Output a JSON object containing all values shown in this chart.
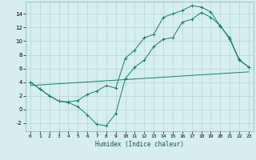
{
  "xlabel": "Humidex (Indice chaleur)",
  "bg_color": "#d6eef0",
  "grid_color": "#b8d8dc",
  "line_color": "#1a7a6e",
  "xlim": [
    -0.5,
    23.5
  ],
  "ylim": [
    -3.2,
    15.8
  ],
  "xticks": [
    0,
    1,
    2,
    3,
    4,
    5,
    6,
    7,
    8,
    9,
    10,
    11,
    12,
    13,
    14,
    15,
    16,
    17,
    18,
    19,
    20,
    21,
    22,
    23
  ],
  "yticks": [
    -2,
    0,
    2,
    4,
    6,
    8,
    10,
    12,
    14
  ],
  "line1_x": [
    0,
    1,
    2,
    3,
    4,
    5,
    6,
    7,
    8,
    9,
    10,
    11,
    12,
    13,
    14,
    15,
    16,
    17,
    18,
    19,
    20,
    21,
    22,
    23
  ],
  "line1_y": [
    4.0,
    3.0,
    2.0,
    1.2,
    1.1,
    1.3,
    2.2,
    2.7,
    3.5,
    3.1,
    7.5,
    8.7,
    10.5,
    11.0,
    13.5,
    14.0,
    14.5,
    15.2,
    15.0,
    14.3,
    12.2,
    10.5,
    7.3,
    6.2
  ],
  "line2_x": [
    0,
    1,
    2,
    3,
    4,
    5,
    6,
    7,
    8,
    9,
    10,
    11,
    12,
    13,
    14,
    15,
    16,
    17,
    18,
    19,
    20,
    21,
    22,
    23
  ],
  "line2_y": [
    4.0,
    3.0,
    2.0,
    1.2,
    1.0,
    0.4,
    -0.8,
    -2.2,
    -2.4,
    -0.6,
    4.5,
    6.2,
    7.2,
    9.2,
    10.3,
    10.5,
    12.8,
    13.2,
    14.2,
    13.5,
    12.3,
    10.3,
    7.2,
    6.2
  ],
  "line3_x": [
    0,
    23
  ],
  "line3_y": [
    3.5,
    5.5
  ]
}
